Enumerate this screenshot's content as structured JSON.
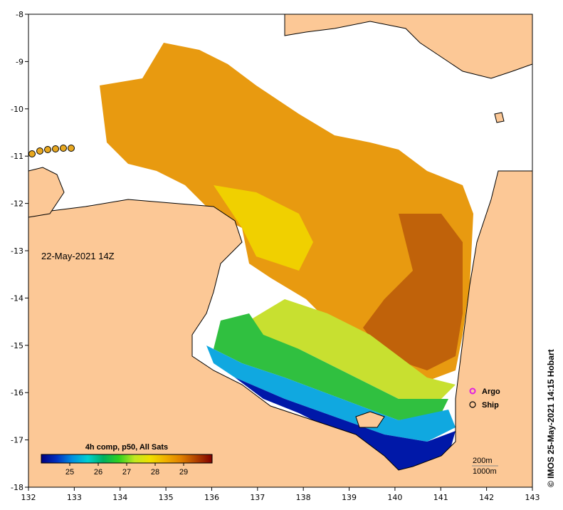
{
  "map": {
    "date_label": "22-May-2021 14Z",
    "credit": "© IMOS 25-May-2021 14:15 Hobart",
    "x_axis": {
      "min": 132,
      "max": 143,
      "ticks": [
        "132",
        "133",
        "134",
        "135",
        "136",
        "137",
        "138",
        "139",
        "140",
        "141",
        "142",
        "143"
      ]
    },
    "y_axis": {
      "min": -18,
      "max": -8,
      "ticks": [
        "-8",
        "-9",
        "-10",
        "-11",
        "-12",
        "-13",
        "-14",
        "-15",
        "-16",
        "-17",
        "-18"
      ]
    },
    "colorbar": {
      "title": "4h comp, p50, All Sats",
      "min": 24,
      "max": 30,
      "ticks": [
        "25",
        "26",
        "27",
        "28",
        "29"
      ],
      "colors": [
        "#000080",
        "#0030c0",
        "#0090e0",
        "#00d0d0",
        "#00b060",
        "#30d020",
        "#c0e820",
        "#f0e000",
        "#f0b000",
        "#e08000",
        "#b04000",
        "#800000"
      ]
    },
    "legend": {
      "argo_label": "Argo",
      "ship_label": "Ship"
    },
    "depth_labels": [
      "200m",
      "1000m"
    ],
    "colors": {
      "land": "#fcc896",
      "coast": "#000000",
      "cloud": "#ffffff"
    }
  }
}
